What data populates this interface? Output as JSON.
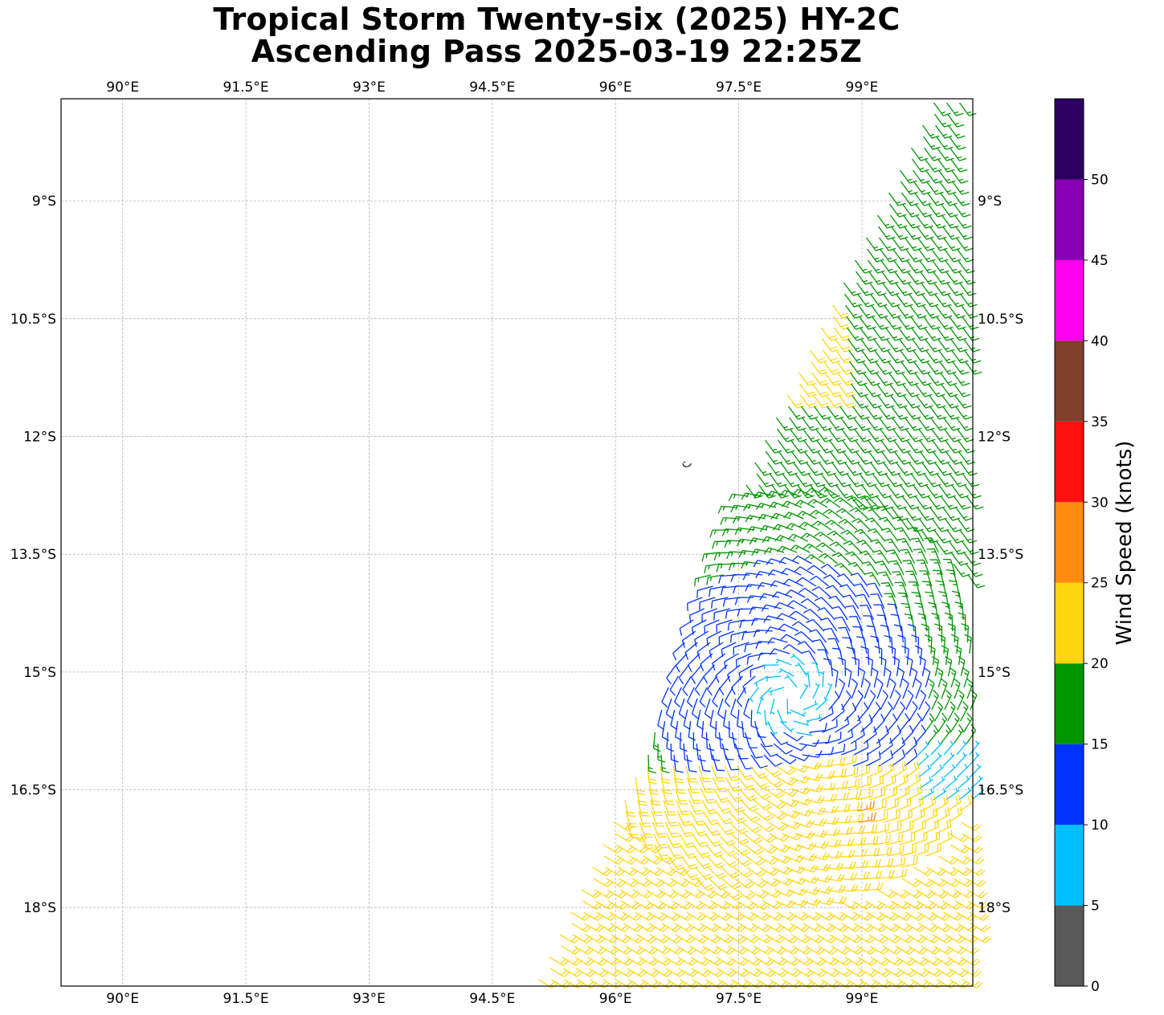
{
  "title": {
    "line1": "Tropical Storm Twenty-six (2025) HY-2C",
    "line2": "Ascending Pass 2025-03-19 22:25Z"
  },
  "map": {
    "longitude_ticks": [
      "90°E",
      "91.5°E",
      "93°E",
      "94.5°E",
      "96°E",
      "97.5°E",
      "99°E"
    ],
    "latitude_ticks": [
      "9°S",
      "10.5°S",
      "12°S",
      "13.5°S",
      "15°S",
      "16.5°S",
      "18°S"
    ],
    "lon_range": [
      89.25,
      100.35
    ],
    "lat_range": [
      -19.0,
      -7.7
    ],
    "gridlines": true,
    "swath": {
      "description_free": true,
      "east_edge_lon": 100.35
    }
  },
  "colorbar": {
    "label": "Wind Speed (knots)",
    "tick_labels": [
      "0",
      "5",
      "10",
      "15",
      "20",
      "25",
      "30",
      "35",
      "40",
      "45",
      "50"
    ],
    "bins": [
      {
        "min": 0,
        "max": 5,
        "color": "#595959"
      },
      {
        "min": 5,
        "max": 10,
        "color": "#00bfff"
      },
      {
        "min": 10,
        "max": 15,
        "color": "#0033ff"
      },
      {
        "min": 15,
        "max": 20,
        "color": "#009600"
      },
      {
        "min": 20,
        "max": 25,
        "color": "#ffd610"
      },
      {
        "min": 25,
        "max": 30,
        "color": "#ff8c0f"
      },
      {
        "min": 30,
        "max": 35,
        "color": "#ff1010"
      },
      {
        "min": 35,
        "max": 40,
        "color": "#7f3f2a"
      },
      {
        "min": 40,
        "max": 45,
        "color": "#ff00ee"
      },
      {
        "min": 45,
        "max": 50,
        "color": "#8800b3"
      },
      {
        "min": 50,
        "max": 55,
        "color": "#2d0060"
      }
    ]
  },
  "chart_data": {
    "type": "wind-barb-map",
    "units": "knots",
    "storm_center_approx": {
      "lon": 98.1,
      "lat": -14.9
    },
    "regions": [
      {
        "name": "",
        "speed_band_kt": [
          20,
          25
        ],
        "color": "#ffd610"
      },
      {
        "name": "",
        "speed_band_kt": [
          15,
          20
        ],
        "color": "#009600"
      },
      {
        "name": "",
        "speed_band_kt": [
          10,
          15
        ],
        "color": "#0033ff"
      },
      {
        "name": "",
        "speed_band_kt": [
          5,
          10
        ],
        "color": "#00bfff"
      },
      {
        "name": "",
        "speed_band_kt": [
          25,
          30
        ],
        "color": "#ff8c0f"
      }
    ]
  }
}
